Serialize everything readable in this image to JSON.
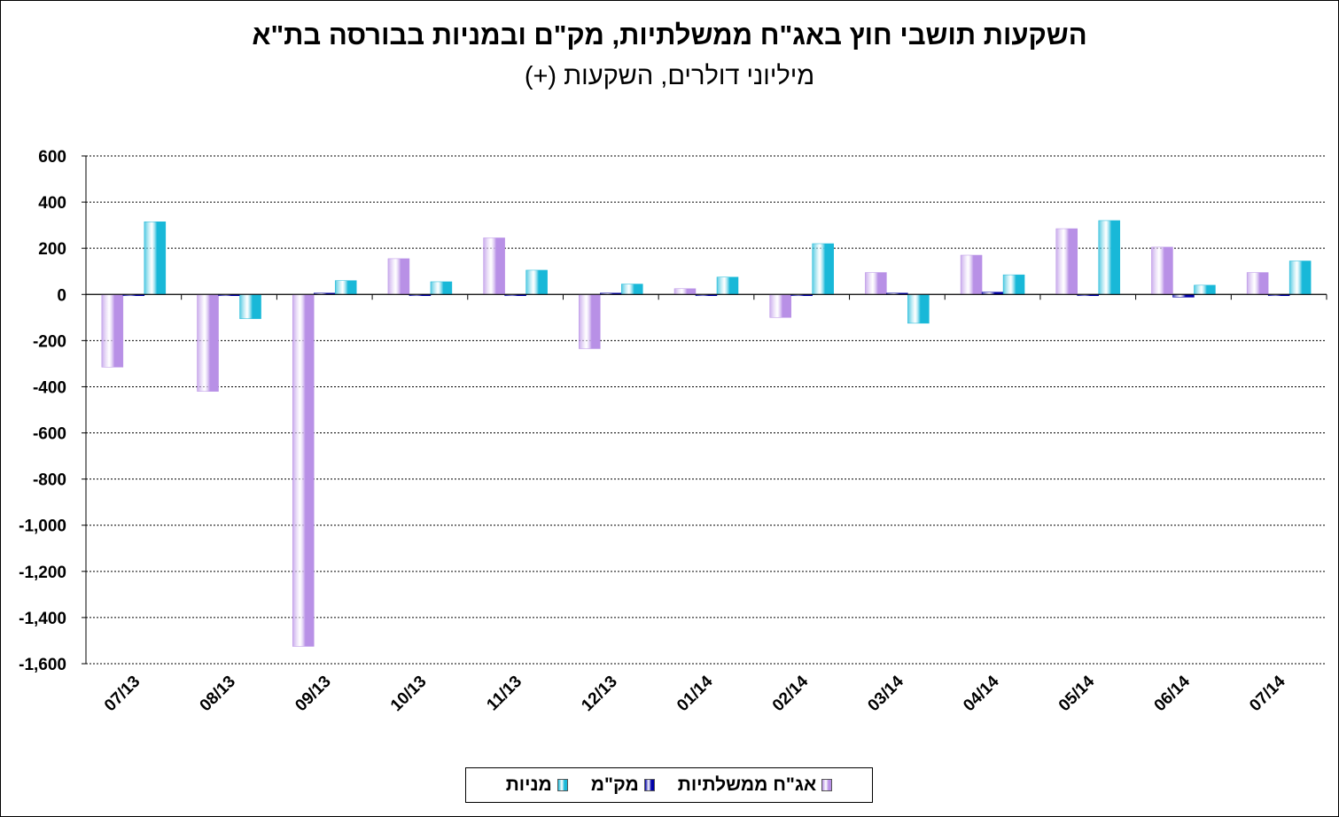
{
  "chart_data": {
    "type": "bar",
    "title": "השקעות תושבי חוץ באג\"ח ממשלתיות, מק\"ם ובמניות בבורסה בת\"א",
    "subtitle": "מיליוני דולרים, השקעות (+)",
    "categories": [
      "07/13",
      "08/13",
      "09/13",
      "10/13",
      "11/13",
      "12/13",
      "01/14",
      "02/14",
      "03/14",
      "04/14",
      "05/14",
      "06/14",
      "07/14"
    ],
    "series": [
      {
        "name": "אג\"ח ממשלתיות",
        "color": "#b890e6",
        "values": [
          -315,
          -420,
          -1525,
          155,
          245,
          -235,
          25,
          -100,
          95,
          170,
          285,
          205,
          95
        ]
      },
      {
        "name": "מק\"מ",
        "color": "#0000a8",
        "values": [
          -3,
          -3,
          0,
          -3,
          -3,
          3,
          -3,
          -3,
          3,
          10,
          -3,
          -12,
          -3
        ]
      },
      {
        "name": "מניות",
        "color": "#18b8d8",
        "values": [
          315,
          -105,
          60,
          55,
          105,
          45,
          75,
          220,
          -125,
          85,
          320,
          40,
          145
        ]
      }
    ],
    "ylim": [
      -1600,
      600
    ],
    "yticks": [
      600,
      400,
      200,
      0,
      -200,
      -400,
      -600,
      -800,
      -1000,
      -1200,
      -1400,
      -1600
    ],
    "ytick_labels": [
      "600",
      "400",
      "200",
      "0",
      "-200",
      "-400",
      "-600",
      "-800",
      "-1,000",
      "-1,200",
      "-1,400",
      "-1,600"
    ],
    "grid": true,
    "legend": "bottom"
  }
}
